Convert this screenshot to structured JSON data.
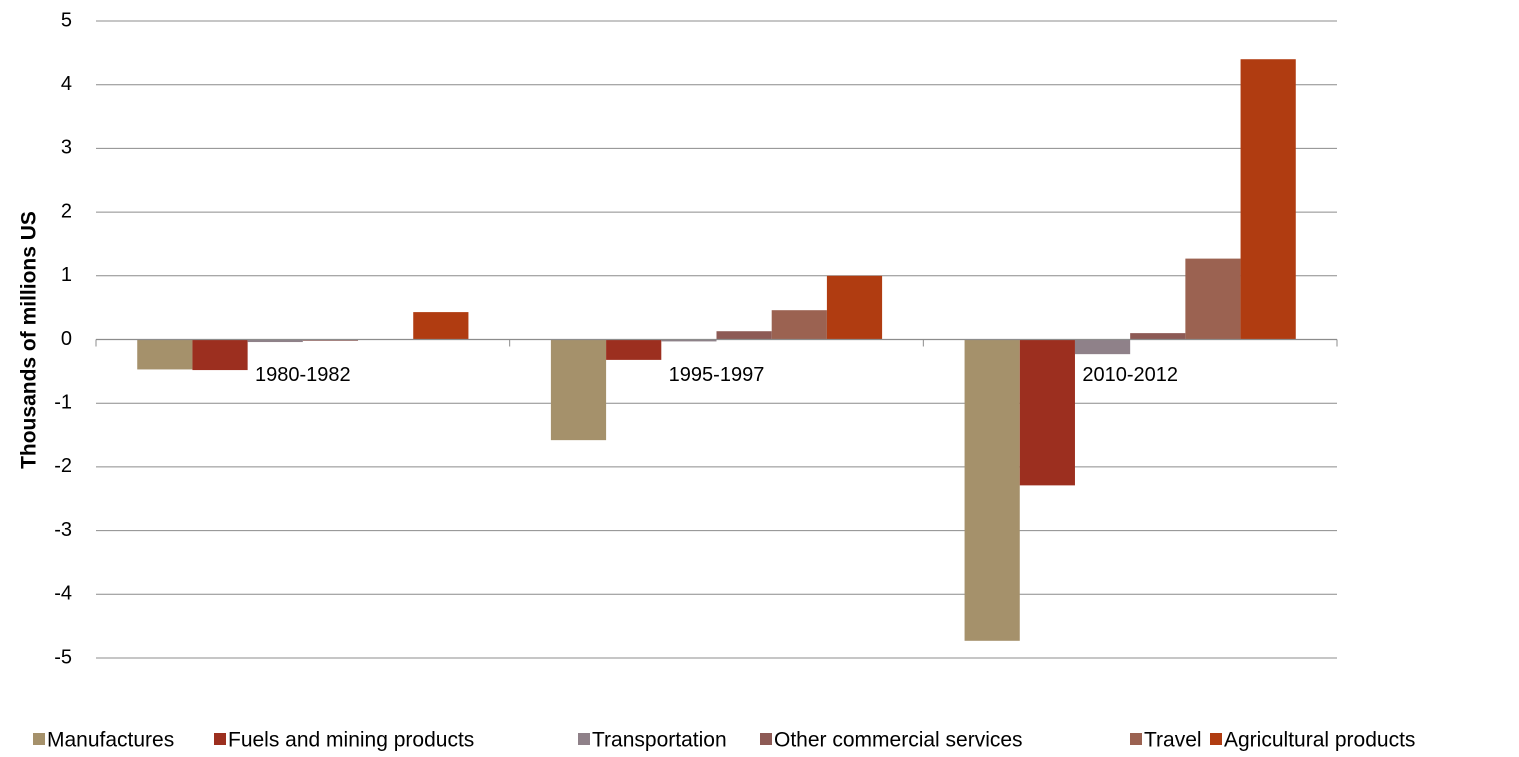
{
  "chart_data": {
    "type": "bar",
    "y_label": "Thousands of millions US",
    "categories": [
      "1980-1982",
      "1995-1997",
      "2010-2012"
    ],
    "series": [
      {
        "name": "Manufactures",
        "color": "#a5916b",
        "values": [
          -0.47,
          -1.58,
          -4.73
        ]
      },
      {
        "name": "Fuels and mining products",
        "color": "#9c2f1f",
        "values": [
          -0.48,
          -0.32,
          -2.29
        ]
      },
      {
        "name": "Transportation",
        "color": "#8f8189",
        "values": [
          -0.04,
          -0.03,
          -0.23
        ]
      },
      {
        "name": "Other commercial services",
        "color": "#8d5a55",
        "values": [
          -0.02,
          0.13,
          0.1
        ]
      },
      {
        "name": "Travel",
        "color": "#9b6251",
        "values": [
          0,
          0.46,
          1.27
        ]
      },
      {
        "name": "Agricultural products",
        "color": "#b03c11",
        "values": [
          0.43,
          1.0,
          4.4
        ]
      }
    ],
    "ylim": [
      -5,
      5
    ],
    "yticks": [
      -5,
      -4,
      -3,
      -2,
      -1,
      0,
      1,
      2,
      3,
      4,
      5
    ],
    "grid": true,
    "legend": "bottom"
  }
}
